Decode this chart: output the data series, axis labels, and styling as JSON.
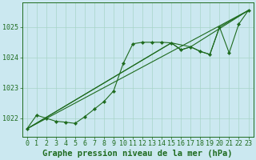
{
  "background_color": "#cbe8f0",
  "plot_bg_color": "#cbe8f0",
  "grid_color": "#a8d4c8",
  "line_color": "#1e6b1e",
  "xlabel": "Graphe pression niveau de la mer (hPa)",
  "xlabel_fontsize": 7.5,
  "tick_fontsize": 6,
  "xlim": [
    -0.5,
    23.5
  ],
  "ylim": [
    1021.4,
    1025.8
  ],
  "yticks": [
    1022,
    1023,
    1024,
    1025
  ],
  "xticks": [
    0,
    1,
    2,
    3,
    4,
    5,
    6,
    7,
    8,
    9,
    10,
    11,
    12,
    13,
    14,
    15,
    16,
    17,
    18,
    19,
    20,
    21,
    22,
    23
  ],
  "main_series": {
    "x": [
      0,
      1,
      2,
      3,
      4,
      5,
      6,
      7,
      8,
      9,
      10,
      11,
      12,
      13,
      14,
      15,
      16,
      17,
      18,
      19,
      20,
      21,
      22,
      23
    ],
    "y": [
      1021.65,
      1022.1,
      1022.0,
      1021.9,
      1021.87,
      1021.83,
      1022.05,
      1022.3,
      1022.55,
      1022.9,
      1023.8,
      1024.45,
      1024.5,
      1024.5,
      1024.5,
      1024.48,
      1024.25,
      1024.35,
      1024.2,
      1024.1,
      1025.0,
      1024.15,
      1025.1,
      1025.55
    ]
  },
  "line1": {
    "x": [
      0,
      23
    ],
    "y": [
      1021.65,
      1025.55
    ]
  },
  "line2": {
    "x": [
      0,
      15,
      17,
      23
    ],
    "y": [
      1021.65,
      1024.48,
      1024.35,
      1025.55
    ]
  },
  "line3": {
    "x": [
      0,
      15,
      16,
      17,
      18,
      19,
      20,
      23
    ],
    "y": [
      1021.65,
      1024.48,
      1024.25,
      1024.35,
      1024.2,
      1024.1,
      1025.0,
      1025.55
    ]
  }
}
